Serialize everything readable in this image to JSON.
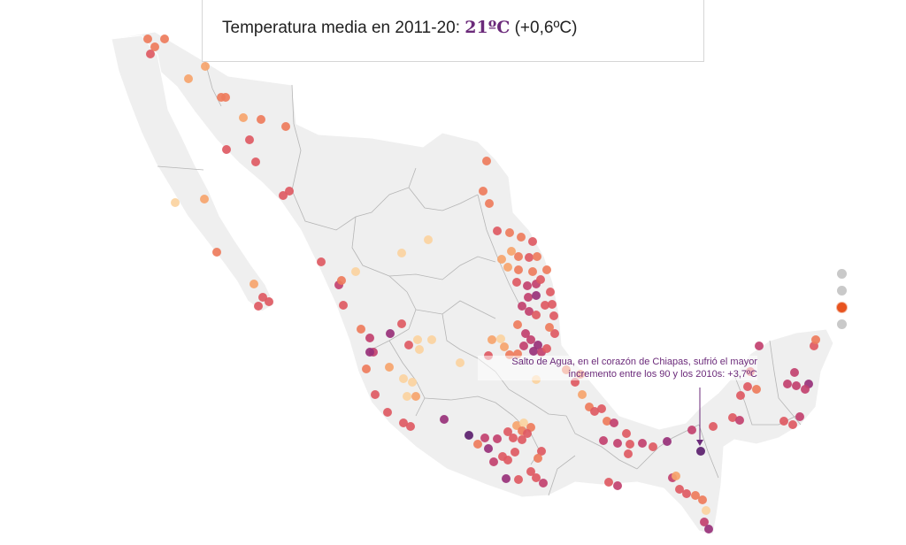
{
  "header": {
    "title_prefix": "Temperatura media en 2011-20: ",
    "title_value": "21ºC",
    "title_suffix": " (+0,6ºC)"
  },
  "annotation": {
    "line1": "Salto de Agua, en el corazón de Chiapas, sufrió el mayor",
    "line2": "incremento entre los 90 y los 2010s: +3,7ºC"
  },
  "pager": {
    "active_index": 2,
    "count": 4
  },
  "colors": {
    "land": "#efefef",
    "borders": "#b5b5b5",
    "annotation": "#6b2a7a",
    "scale": [
      "#fbd3a0",
      "#f6a46c",
      "#ee7c5c",
      "#de5a63",
      "#c2416f",
      "#98317a",
      "#5b1f6e"
    ]
  }
}
